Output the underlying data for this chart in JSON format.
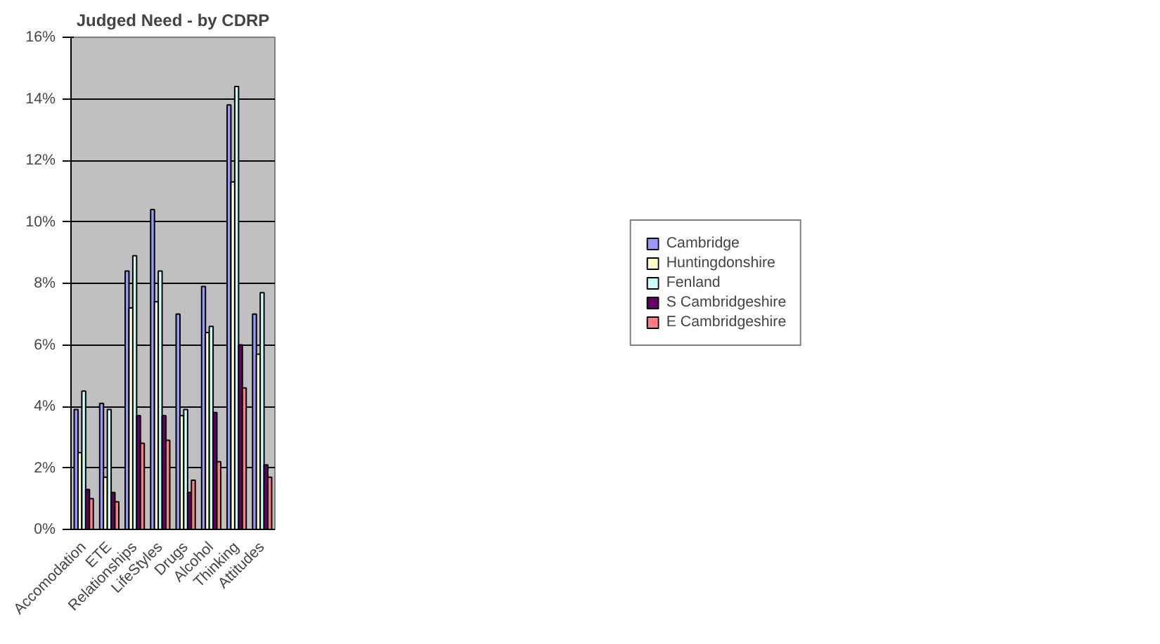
{
  "chart_data": {
    "type": "bar",
    "title": "Judged Need - by CDRP",
    "categories": [
      "Accomodation",
      "ETE",
      "Relationships",
      "LifeStyles",
      "Drugs",
      "Alcohol",
      "Thinking",
      "Attitudes"
    ],
    "series": [
      {
        "name": "Cambridge",
        "color": "#9999ff",
        "values": [
          3.9,
          4.1,
          8.4,
          10.4,
          7.0,
          7.9,
          13.8,
          7.0
        ]
      },
      {
        "name": "Huntingdonshire",
        "color": "#ffffcc",
        "values": [
          2.5,
          1.7,
          7.2,
          7.4,
          3.7,
          6.4,
          11.3,
          5.7
        ]
      },
      {
        "name": "Fenland",
        "color": "#ccffff",
        "values": [
          4.5,
          3.9,
          8.9,
          8.4,
          3.9,
          6.6,
          14.4,
          7.7
        ]
      },
      {
        "name": "S Cambridgeshire",
        "color": "#660066",
        "values": [
          1.3,
          1.2,
          3.7,
          3.7,
          1.2,
          3.8,
          6.0,
          2.1
        ]
      },
      {
        "name": "E Cambridgeshire",
        "color": "#ff8080",
        "values": [
          1.0,
          0.9,
          2.8,
          2.9,
          1.6,
          2.2,
          4.6,
          1.7
        ]
      }
    ],
    "ylim": [
      0,
      16
    ],
    "yticks": [
      {
        "value": 0,
        "label": "0%"
      },
      {
        "value": 2,
        "label": "2%"
      },
      {
        "value": 4,
        "label": "4%"
      },
      {
        "value": 6,
        "label": "6%"
      },
      {
        "value": 8,
        "label": "8%"
      },
      {
        "value": 10,
        "label": "10%"
      },
      {
        "value": 12,
        "label": "12%"
      },
      {
        "value": 14,
        "label": "14%"
      },
      {
        "value": 16,
        "label": "16%"
      }
    ],
    "grid": "y",
    "legend": "right"
  }
}
